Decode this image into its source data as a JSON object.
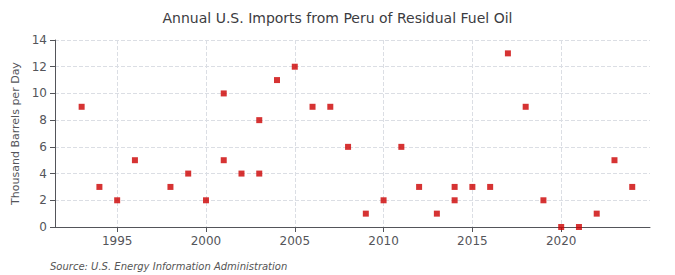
{
  "chart_data": {
    "type": "scatter",
    "title": "Annual U.S. Imports from Peru of Residual Fuel Oil",
    "ylabel": "Thousand Barrels per Day",
    "annotations": [
      "Source: U.S. Energy Information Administration"
    ],
    "x": [
      1993,
      1994,
      1995,
      1996,
      1998,
      1999,
      2000,
      2001,
      2001,
      2002,
      2003,
      2003,
      2004,
      2005,
      2006,
      2007,
      2008,
      2009,
      2010,
      2011,
      2012,
      2013,
      2014,
      2014,
      2015,
      2016,
      2017,
      2018,
      2019,
      2020,
      2021,
      2022,
      2023,
      2024
    ],
    "values": [
      9,
      3,
      2,
      5,
      3,
      4,
      2,
      10,
      5,
      4,
      8,
      4,
      11,
      12,
      9,
      9,
      6,
      1,
      2,
      6,
      3,
      1,
      2,
      3,
      3,
      3,
      13,
      9,
      2,
      0,
      0,
      1,
      5,
      3
    ],
    "color": "#cc0000",
    "marker": "square",
    "xlim": [
      1991.5,
      2025
    ],
    "xticks": [
      1995,
      2000,
      2005,
      2010,
      2015,
      2020
    ],
    "ylim": [
      0,
      14
    ],
    "yticks": [
      0,
      2,
      4,
      6,
      8,
      10,
      12,
      14
    ],
    "grid": true
  }
}
